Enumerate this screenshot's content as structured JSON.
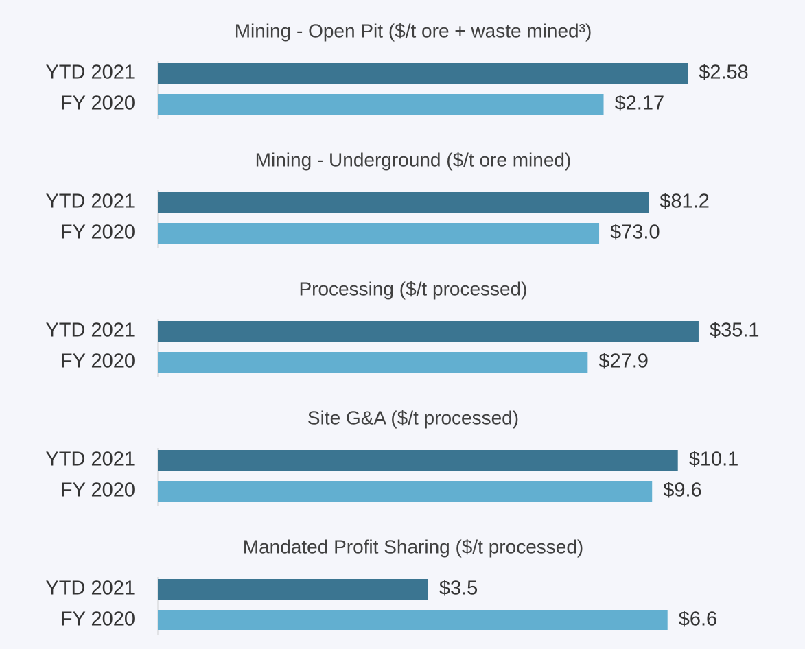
{
  "chart_data": [
    {
      "type": "bar",
      "orientation": "horizontal",
      "title": "Mining - Open Pit ($/t ore + waste mined³)",
      "categories": [
        "YTD 2021",
        "FY 2020"
      ],
      "values": [
        2.58,
        2.17
      ],
      "value_labels": [
        "$2.58",
        "$2.17"
      ],
      "colors": [
        "#3b7591",
        "#62afd0"
      ],
      "xlim": [
        0,
        2.94
      ]
    },
    {
      "type": "bar",
      "orientation": "horizontal",
      "title": "Mining - Underground ($/t ore mined)",
      "categories": [
        "YTD 2021",
        "FY 2020"
      ],
      "values": [
        81.2,
        73.0
      ],
      "value_labels": [
        "$81.2",
        "$73.0"
      ],
      "colors": [
        "#3b7591",
        "#62afd0"
      ],
      "xlim": [
        0,
        99.9
      ]
    },
    {
      "type": "bar",
      "orientation": "horizontal",
      "title": "Processing ($/t processed)",
      "categories": [
        "YTD 2021",
        "FY 2020"
      ],
      "values": [
        35.1,
        27.9
      ],
      "value_labels": [
        "$35.1",
        "$27.9"
      ],
      "colors": [
        "#3b7591",
        "#62afd0"
      ],
      "xlim": [
        0,
        39.2
      ]
    },
    {
      "type": "bar",
      "orientation": "horizontal",
      "title": "Site G&A ($/t processed)",
      "categories": [
        "YTD 2021",
        "FY 2020"
      ],
      "values": [
        10.1,
        9.6
      ],
      "value_labels": [
        "$10.1",
        "$9.6"
      ],
      "colors": [
        "#3b7591",
        "#62afd0"
      ],
      "xlim": [
        0,
        11.73
      ]
    },
    {
      "type": "bar",
      "orientation": "horizontal",
      "title": "Mandated Profit Sharing ($/t processed)",
      "categories": [
        "YTD 2021",
        "FY 2020"
      ],
      "values": [
        3.5,
        6.6
      ],
      "value_labels": [
        "$3.5",
        "$6.6"
      ],
      "colors": [
        "#3b7591",
        "#62afd0"
      ],
      "xlim": [
        0,
        7.82
      ]
    }
  ]
}
